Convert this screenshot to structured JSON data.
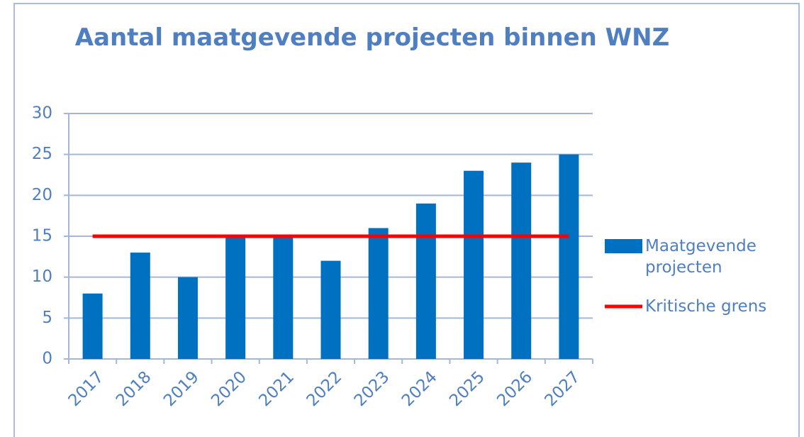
{
  "chart_data": {
    "type": "bar",
    "title": "Aantal maatgevende projecten binnen WNZ",
    "categories": [
      "2017",
      "2018",
      "2019",
      "2020",
      "2021",
      "2022",
      "2023",
      "2024",
      "2025",
      "2026",
      "2027"
    ],
    "series": [
      {
        "name": "Maatgevende projecten",
        "type": "bar",
        "color": "#0070c0",
        "values": [
          8,
          13,
          10,
          15,
          15,
          12,
          16,
          19,
          23,
          24,
          25
        ]
      },
      {
        "name": "Kritische grens",
        "type": "line",
        "color": "#ff0000",
        "values": [
          15,
          15,
          15,
          15,
          15,
          15,
          15,
          15,
          15,
          15,
          15
        ]
      }
    ],
    "ylim": [
      0,
      30
    ],
    "yticks": [
      0,
      5,
      10,
      15,
      20,
      25,
      30
    ],
    "grid": true,
    "legend": "right"
  }
}
